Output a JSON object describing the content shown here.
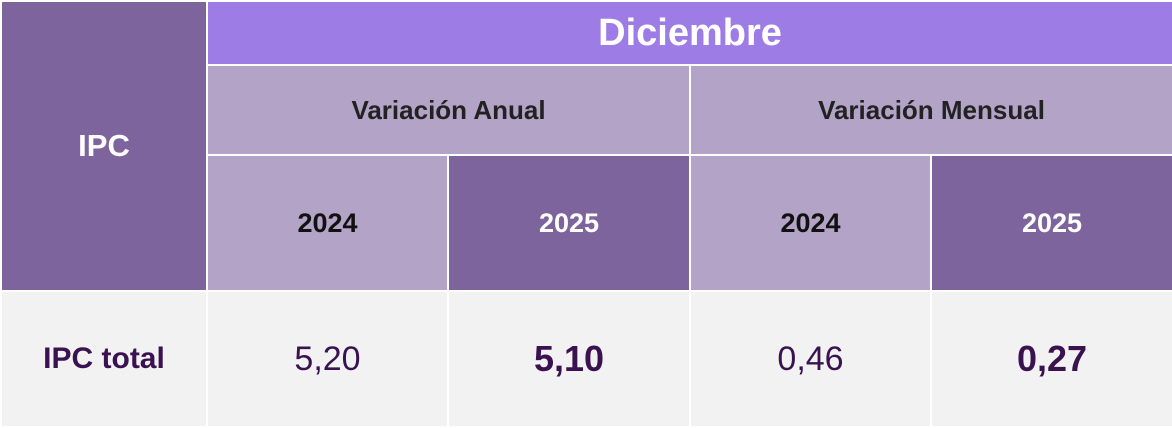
{
  "chart_data": {
    "type": "table",
    "corner_label": "IPC",
    "period": "Diciembre",
    "groups": [
      "Variación Anual",
      "Variación Mensual"
    ],
    "years": [
      "2024",
      "2025",
      "2024",
      "2025"
    ],
    "rows": [
      {
        "label": "IPC total",
        "values": [
          "5,20",
          "5,10",
          "0,46",
          "0,27"
        ]
      }
    ]
  },
  "colors": {
    "header_dark": "#7e649d",
    "header_accent": "#9e7ce6",
    "header_light": "#b3a3c7",
    "body_bg": "#f2f2f2",
    "value_text": "#3a1250"
  }
}
